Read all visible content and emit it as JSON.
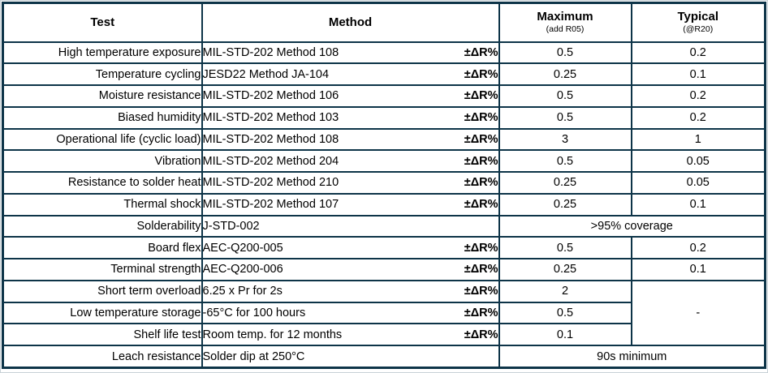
{
  "page": {
    "background": "#ffffff",
    "edge_hairline_color": "#c9d2d7"
  },
  "table": {
    "border_color": "#0d3448",
    "text_color": "#000000",
    "header": {
      "test": "Test",
      "method": "Method",
      "maximum": "Maximum",
      "maximum_sub": "(add R05)",
      "typical": "Typical",
      "typical_sub": "(@R20)"
    },
    "rows": [
      {
        "type": "normal",
        "test": "High temperature exposure",
        "method": "MIL-STD-202 Method 108",
        "delta": "±ΔR%",
        "maximum": "0.5",
        "typical": "0.2"
      },
      {
        "type": "normal",
        "test": "Temperature cycling",
        "method": "JESD22 Method JA-104",
        "delta": "±ΔR%",
        "maximum": "0.25",
        "typical": "0.1"
      },
      {
        "type": "normal",
        "test": "Moisture resistance",
        "method": "MIL-STD-202 Method 106",
        "delta": "±ΔR%",
        "maximum": "0.5",
        "typical": "0.2"
      },
      {
        "type": "normal",
        "test": "Biased humidity",
        "method": "MIL-STD-202 Method 103",
        "delta": "±ΔR%",
        "maximum": "0.5",
        "typical": "0.2"
      },
      {
        "type": "normal",
        "test": "Operational life (cyclic load)",
        "method": "MIL-STD-202 Method 108",
        "delta": "±ΔR%",
        "maximum": "3",
        "typical": "1"
      },
      {
        "type": "normal",
        "test": "Vibration",
        "method": "MIL-STD-202 Method 204",
        "delta": "±ΔR%",
        "maximum": "0.5",
        "typical": "0.05"
      },
      {
        "type": "normal",
        "test": "Resistance to solder heat",
        "method": "MIL-STD-202 Method 210",
        "delta": "±ΔR%",
        "maximum": "0.25",
        "typical": "0.05"
      },
      {
        "type": "normal",
        "test": "Thermal shock",
        "method": "MIL-STD-202 Method 107",
        "delta": "±ΔR%",
        "maximum": "0.25",
        "typical": "0.1"
      },
      {
        "type": "colspan",
        "test": "Solderability",
        "method": "J-STD-002",
        "delta": "",
        "merged": ">95% coverage"
      },
      {
        "type": "normal",
        "test": "Board flex",
        "method": "AEC-Q200-005",
        "delta": "±ΔR%",
        "maximum": "0.5",
        "typical": "0.2"
      },
      {
        "type": "normal",
        "test": "Terminal strength",
        "method": "AEC-Q200-006",
        "delta": "±ΔR%",
        "maximum": "0.25",
        "typical": "0.1"
      },
      {
        "type": "rowspan_start",
        "test": "Short term overload",
        "method": "6.25 x Pr for 2s",
        "delta": "±ΔR%",
        "maximum": "2",
        "typical": "-",
        "rowspan": 3
      },
      {
        "type": "rowspan_cont",
        "test": "Low temperature storage",
        "method": "-65°C for 100 hours",
        "delta": "±ΔR%",
        "maximum": "0.5"
      },
      {
        "type": "rowspan_cont",
        "test": "Shelf life test",
        "method": "Room temp. for 12 months",
        "delta": "±ΔR%",
        "maximum": "0.1"
      },
      {
        "type": "colspan",
        "test": "Leach resistance",
        "method": "Solder dip at 250°C",
        "delta": "",
        "merged": "90s minimum"
      }
    ]
  }
}
